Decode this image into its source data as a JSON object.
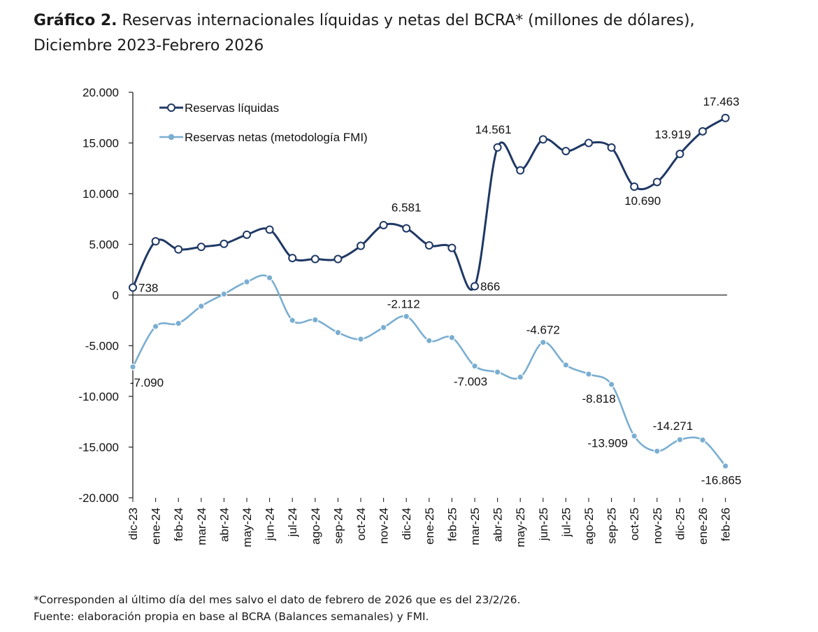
{
  "title": {
    "bold": "Gráfico 2.",
    "text": " Reservas internacionales líquidas y netas del BCRA* (millones de dólares),",
    "line2": "Diciembre 2023-Febrero 2026"
  },
  "footnote": {
    "line1": "*Corresponden al último día del mes salvo el dato de febrero de 2026 que es del 23/2/26.",
    "line2": "Fuente: elaboración propia en base al BCRA (Balances semanales) y FMI."
  },
  "chart_data": {
    "type": "line",
    "categories": [
      "dic-23",
      "ene-24",
      "feb-24",
      "mar-24",
      "abr-24",
      "may-24",
      "jun-24",
      "jul-24",
      "ago-24",
      "sep-24",
      "oct-24",
      "nov-24",
      "dic-24",
      "ene-25",
      "feb-25",
      "mar-25",
      "abr-25",
      "may-25",
      "jun-25",
      "jul-25",
      "ago-25",
      "sep-25",
      "oct-25",
      "nov-25",
      "dic-25",
      "ene-26",
      "feb-26"
    ],
    "ylim": [
      -20000,
      20000
    ],
    "yticks": [
      20000,
      15000,
      10000,
      5000,
      0,
      -5000,
      -10000,
      -15000,
      -20000
    ],
    "ytick_labels": [
      "20.000",
      "15.000",
      "10.000",
      "5.000",
      "0",
      "-5.000",
      "-10.000",
      "-15.000",
      "-20.000"
    ],
    "legend_position": "top-left",
    "series": [
      {
        "name": "Reservas líquidas",
        "color": "#1f3864",
        "marker": "open-circle",
        "values": [
          738,
          5300,
          4500,
          4750,
          5050,
          5950,
          6450,
          3650,
          3550,
          3550,
          4850,
          6900,
          6581,
          4900,
          4650,
          866,
          14561,
          12300,
          15350,
          14200,
          15000,
          14550,
          10690,
          11150,
          13919,
          16150,
          17463
        ],
        "labels": {
          "0": "738",
          "12": "6.581",
          "15": "866",
          "16": "14.561",
          "22": "10.690",
          "24": "13.919",
          "26": "17.463"
        }
      },
      {
        "name": "Reservas netas (metodología FMI)",
        "color": "#7aaed1",
        "marker": "filled-circle",
        "values": [
          -7090,
          -3100,
          -2800,
          -1100,
          100,
          1300,
          1700,
          -2500,
          -2450,
          -3700,
          -4350,
          -3200,
          -2112,
          -4500,
          -4200,
          -7003,
          -7600,
          -8100,
          -4672,
          -6900,
          -7800,
          -8818,
          -13909,
          -15400,
          -14271,
          -14300,
          -16865
        ],
        "labels": {
          "0": "-7.090",
          "12": "-2.112",
          "15": "-7.003",
          "18": "-4.672",
          "21": "-8.818",
          "22": "-13.909",
          "24": "-14.271",
          "26": "-16.865"
        }
      }
    ]
  }
}
